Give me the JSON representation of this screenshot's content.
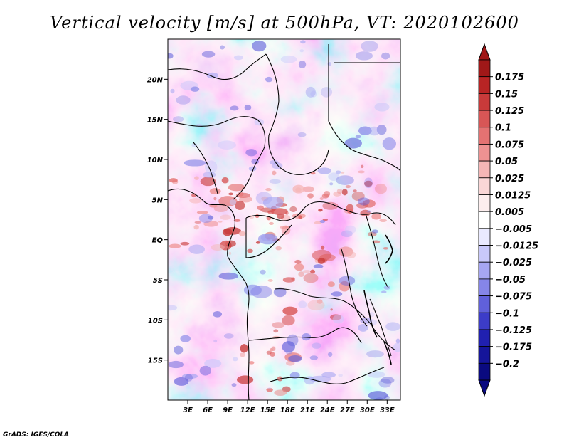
{
  "title": "Vertical velocity [m/s] at 500hPa, VT: 2020102600",
  "credit": "GrADS: IGES/COLA",
  "chart_data": {
    "type": "heatmap",
    "variable": "Vertical velocity",
    "units": "m/s",
    "level": "500hPa",
    "valid_time": "2020102600",
    "lon_range": [
      0,
      35
    ],
    "lat_range": [
      -20,
      25
    ],
    "xticks": [
      "3E",
      "6E",
      "9E",
      "12E",
      "15E",
      "18E",
      "21E",
      "24E",
      "27E",
      "30E",
      "33E"
    ],
    "xtick_values": [
      3,
      6,
      9,
      12,
      15,
      18,
      21,
      24,
      27,
      30,
      33
    ],
    "yticks": [
      "20N",
      "15N",
      "10N",
      "5N",
      "EQ",
      "5S",
      "10S",
      "15S"
    ],
    "ytick_values": [
      20,
      15,
      10,
      5,
      0,
      -5,
      -10,
      -15
    ],
    "colorbar_labels": [
      "0.175",
      "0.15",
      "0.125",
      "0.1",
      "0.075",
      "0.05",
      "0.025",
      "0.0125",
      "0.005",
      "−0.005",
      "−0.0125",
      "−0.025",
      "−0.05",
      "−0.075",
      "−0.1",
      "−0.125",
      "−0.175",
      "−0.2"
    ],
    "colorbar_colors": [
      "#a01818",
      "#b82424",
      "#c83a3a",
      "#d85656",
      "#e47272",
      "#ee9292",
      "#f5b6b6",
      "#fad6d6",
      "#fdeeee",
      "#ffffff",
      "#eaeaff",
      "#c8c8fa",
      "#a6a6f2",
      "#8585e8",
      "#6060da",
      "#3c3cc8",
      "#2020b0",
      "#15159a",
      "#0a0a80"
    ],
    "colorbar_under": "#0a0a80",
    "colorbar_over": "#a01818"
  }
}
